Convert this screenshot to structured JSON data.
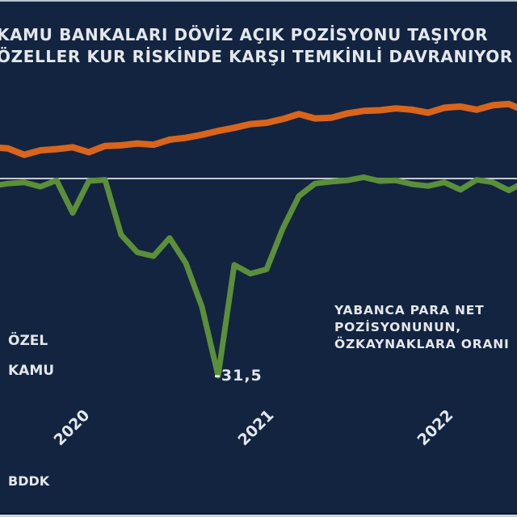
{
  "title": {
    "line1": "KAMU BANKALARI DÖVİZ AÇIK POZİSYONU TAŞIYOR",
    "line2": "ÖZELLER KUR RİSKİNDE KARŞI TEMKİNLİ DAVRANIYOR"
  },
  "legend": {
    "ozel": "ÖZEL",
    "kamu": "KAMU"
  },
  "annotation": {
    "min_value": "-31,5",
    "note_line1": "YABANCA PARA NET",
    "note_line2": "POZİSYONUNUN,",
    "note_line3": "ÖZKAYNAKLARA ORANI"
  },
  "x_labels": [
    "2020",
    "2021",
    "2022"
  ],
  "source": "BDDK",
  "colors": {
    "background": "#132440",
    "ozel": "#d9651b",
    "kamu": "#5b8f3a",
    "zero_line": "#ffffff",
    "text": "#e3e7ec"
  },
  "chart_data": {
    "type": "line",
    "title": "KAMU BANKALARI DÖVİZ AÇIK POZİSYONU TAŞIYOR / ÖZELLER KUR RİSKİNDE KARŞI TEMKİNLİ DAVRANIYOR",
    "subtitle": "YABANCA PARA NET POZİSYONUNUN, ÖZKAYNAKLARA ORANI",
    "xlabel": "",
    "ylabel": "",
    "x_ticks": [
      "2020",
      "2021",
      "2022"
    ],
    "ylim": [
      -33,
      14
    ],
    "grid": false,
    "zero_line": true,
    "legend_position": "left",
    "annotations": [
      {
        "text": "-31,5",
        "series": "KAMU",
        "note": "minimum, late 2020"
      }
    ],
    "x": [
      "2019-09",
      "2019-10",
      "2019-11",
      "2019-12",
      "2020-01",
      "2020-02",
      "2020-03",
      "2020-04",
      "2020-05",
      "2020-06",
      "2020-07",
      "2020-08",
      "2020-09",
      "2020-10",
      "2020-11",
      "2020-12",
      "2021-01",
      "2021-02",
      "2021-03",
      "2021-04",
      "2021-05",
      "2021-06",
      "2021-07",
      "2021-08",
      "2021-09",
      "2021-10",
      "2021-11",
      "2021-12",
      "2022-01",
      "2022-02",
      "2022-03",
      "2022-04",
      "2022-05",
      "2022-06"
    ],
    "series": [
      {
        "name": "ÖZEL",
        "color": "#d9651b",
        "values": [
          5.0,
          4.8,
          3.8,
          4.5,
          4.7,
          5.0,
          4.2,
          5.2,
          5.3,
          5.6,
          5.4,
          6.2,
          6.5,
          7.0,
          7.6,
          8.1,
          8.7,
          8.9,
          9.5,
          10.3,
          9.6,
          9.7,
          10.4,
          10.8,
          10.9,
          11.2,
          11.0,
          10.5,
          11.3,
          11.5,
          11.0,
          11.7,
          11.9,
          10.8
        ]
      },
      {
        "name": "KAMU",
        "color": "#5b8f3a",
        "values": [
          -1.2,
          -0.8,
          -0.6,
          -1.3,
          -0.3,
          -5.5,
          -0.4,
          -0.2,
          -9.0,
          -11.8,
          -12.4,
          -9.5,
          -13.5,
          -20.5,
          -31.5,
          -13.8,
          -15.2,
          -14.5,
          -8.0,
          -2.8,
          -0.8,
          -0.5,
          -0.3,
          0.2,
          -0.4,
          -0.3,
          -0.9,
          -1.2,
          -0.6,
          -1.8,
          -0.2,
          -0.6,
          -1.9,
          -0.5
        ]
      }
    ]
  }
}
